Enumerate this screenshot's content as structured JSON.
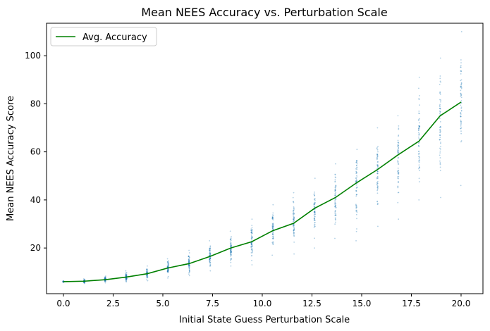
{
  "chart_data": {
    "type": "scatter",
    "title": "Mean NEES Accuracy vs. Perturbation Scale",
    "xlabel": "Initial State Guess Perturbation Scale",
    "ylabel": "Mean NEES Accuracy Score",
    "xlim": [
      -0.85,
      21.1
    ],
    "ylim": [
      1.0,
      113.5
    ],
    "xticks": [
      0.0,
      2.5,
      5.0,
      7.5,
      10.0,
      12.5,
      15.0,
      17.5,
      20.0
    ],
    "xtick_labels": [
      "0.0",
      "2.5",
      "5.0",
      "7.5",
      "10.0",
      "12.5",
      "15.0",
      "17.5",
      "20.0"
    ],
    "yticks": [
      20,
      40,
      60,
      80,
      100
    ],
    "ytick_labels": [
      "20",
      "40",
      "60",
      "80",
      "100"
    ],
    "grid": false,
    "legend": {
      "position": "top-left",
      "entries": [
        "Avg. Accuracy"
      ]
    },
    "series": [
      {
        "name": "Avg. Accuracy",
        "kind": "line",
        "color": "#008000",
        "x": [
          0.0,
          1.05,
          2.1,
          3.16,
          4.21,
          5.26,
          6.32,
          7.37,
          8.42,
          9.47,
          10.53,
          11.58,
          12.63,
          13.68,
          14.74,
          15.79,
          16.84,
          17.89,
          18.95,
          20.0
        ],
        "y": [
          6.0,
          6.2,
          6.8,
          7.9,
          9.3,
          11.7,
          13.5,
          16.5,
          20.0,
          22.6,
          27.2,
          30.3,
          36.5,
          41.0,
          47.1,
          52.6,
          58.8,
          64.5,
          75.0,
          80.7
        ]
      },
      {
        "kind": "scatter",
        "color": "#1f77b4",
        "groups": [
          {
            "x": 0.0,
            "min": 5.7,
            "max": 6.3
          },
          {
            "x": 1.05,
            "min": 5.2,
            "max": 7.2
          },
          {
            "x": 2.1,
            "min": 5.5,
            "max": 8.3
          },
          {
            "x": 3.16,
            "min": 5.9,
            "max": 10.5
          },
          {
            "x": 4.21,
            "min": 6.4,
            "max": 12.5
          },
          {
            "x": 5.26,
            "min": 7.5,
            "max": 15.5
          },
          {
            "x": 6.32,
            "min": 8.5,
            "max": 19.0
          },
          {
            "x": 7.37,
            "min": 10.5,
            "max": 23.0
          },
          {
            "x": 8.42,
            "min": 12.5,
            "max": 27.0
          },
          {
            "x": 9.47,
            "min": 13.0,
            "max": 32.0
          },
          {
            "x": 10.53,
            "min": 17.0,
            "max": 38.0
          },
          {
            "x": 11.58,
            "min": 17.5,
            "max": 43.0
          },
          {
            "x": 12.63,
            "min": 20.0,
            "max": 49.0
          },
          {
            "x": 13.68,
            "min": 24.0,
            "max": 55.0
          },
          {
            "x": 14.74,
            "min": 23.0,
            "max": 61.0
          },
          {
            "x": 15.79,
            "min": 29.0,
            "max": 70.0
          },
          {
            "x": 16.84,
            "min": 32.0,
            "max": 75.0
          },
          {
            "x": 17.89,
            "min": 40.0,
            "max": 91.0
          },
          {
            "x": 18.95,
            "min": 41.0,
            "max": 99.0
          },
          {
            "x": 20.0,
            "min": 46.0,
            "max": 110.0
          }
        ]
      }
    ]
  }
}
